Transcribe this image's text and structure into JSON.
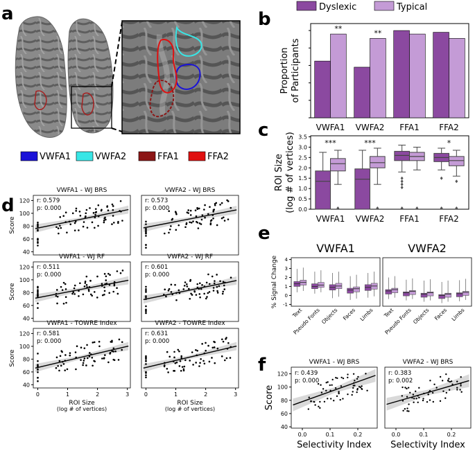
{
  "panel_letters": [
    "a",
    "b",
    "c",
    "d",
    "e",
    "f"
  ],
  "colors": {
    "dyslexic": "#8b49a0",
    "typical": "#c49bd6",
    "vwfa1": "#1a12d8",
    "vwfa2": "#38e6e6",
    "ffa1": "#8c1616",
    "ffa2": "#e01010"
  },
  "roi_legend": [
    {
      "label": "VWFA1",
      "color": "#1a12d8"
    },
    {
      "label": "VWFA2",
      "color": "#38e6e6"
    },
    {
      "label": "FFA1",
      "color": "#8c1616"
    },
    {
      "label": "FFA2",
      "color": "#e01010"
    }
  ],
  "group_legend": [
    {
      "label": "Dyslexic",
      "color": "#8b49a0"
    },
    {
      "label": "Typical",
      "color": "#c49bd6"
    }
  ],
  "chart_data": [
    {
      "id": "b",
      "type": "bar",
      "categories": [
        "VWFA1",
        "VWFA2",
        "FFA1",
        "FFA2"
      ],
      "series": [
        {
          "name": "Dyslexic",
          "values": [
            0.65,
            0.58,
            1.0,
            0.98
          ]
        },
        {
          "name": "Typical",
          "values": [
            0.96,
            0.91,
            0.96,
            0.91
          ]
        }
      ],
      "ylabel_lines": [
        "Proportion",
        "of Participants"
      ],
      "ylim": [
        0,
        1.08
      ],
      "significance": [
        "**",
        "**",
        "",
        ""
      ]
    },
    {
      "id": "c",
      "type": "box",
      "categories": [
        "VWFA1",
        "VWFA2",
        "FFA1",
        "FFA2"
      ],
      "yticks": [
        "0.0",
        "0.5",
        "1.0",
        "1.5",
        "2.0",
        "2.5",
        "3.0",
        "3.5"
      ],
      "ylim": [
        0,
        3.55
      ],
      "ylabel_lines": [
        "ROI Size",
        "(log # of vertices)"
      ],
      "significance": [
        "***",
        "***",
        "",
        "*"
      ],
      "groups": [
        {
          "cat": 0,
          "series": "Dyslexic",
          "q1": 0,
          "med": 1.35,
          "q3": 1.85,
          "wlo": 0,
          "whi": 2.75,
          "outliers": []
        },
        {
          "cat": 0,
          "series": "Typical",
          "q1": 1.85,
          "med": 2.2,
          "q3": 2.45,
          "wlo": 1.2,
          "whi": 2.85,
          "outliers": [
            0.05
          ]
        },
        {
          "cat": 1,
          "series": "Dyslexic",
          "q1": 0,
          "med": 1.45,
          "q3": 1.95,
          "wlo": 0,
          "whi": 2.85,
          "outliers": []
        },
        {
          "cat": 1,
          "series": "Typical",
          "q1": 2.0,
          "med": 2.25,
          "q3": 2.55,
          "wlo": 1.2,
          "whi": 2.95,
          "outliers": [
            0.05
          ]
        },
        {
          "cat": 2,
          "series": "Dyslexic",
          "q1": 2.35,
          "med": 2.6,
          "q3": 2.8,
          "wlo": 1.8,
          "whi": 3.1,
          "outliers": [
            1.5,
            1.35,
            1.2,
            1.05,
            0.05
          ]
        },
        {
          "cat": 2,
          "series": "Typical",
          "q1": 2.35,
          "med": 2.55,
          "q3": 2.75,
          "wlo": 1.9,
          "whi": 3.0,
          "outliers": [
            0.05
          ]
        },
        {
          "cat": 3,
          "series": "Dyslexic",
          "q1": 2.3,
          "med": 2.5,
          "q3": 2.7,
          "wlo": 1.9,
          "whi": 2.95,
          "outliers": [
            1.5,
            0.05
          ]
        },
        {
          "cat": 3,
          "series": "Typical",
          "q1": 2.1,
          "med": 2.35,
          "q3": 2.55,
          "wlo": 1.6,
          "whi": 2.85,
          "outliers": [
            1.35,
            0.05
          ]
        }
      ]
    },
    {
      "id": "d",
      "type": "scatter",
      "xlabel_lines": [
        "ROI Size",
        "(log # of vertices)"
      ],
      "ylabel": "Score",
      "xlim": [
        -0.15,
        3.1
      ],
      "ylim": [
        35,
        128
      ],
      "xticks": [
        "0",
        "1",
        "2",
        "3"
      ],
      "yticks": [
        "40",
        "60",
        "80",
        "100",
        "120"
      ],
      "subplots": [
        {
          "title": "VWFA1 - WJ BRS",
          "r": "r: 0.579",
          "p": "p: 0.000",
          "slope": 9.5,
          "intercept": 77,
          "seed": 11
        },
        {
          "title": "VWFA2 - WJ BRS",
          "r": "r: 0.573",
          "p": "p: 0.000",
          "slope": 9.0,
          "intercept": 78,
          "seed": 23
        },
        {
          "title": "VWFA1 - WJ RF",
          "r": "r: 0.511",
          "p": "p: 0.000",
          "slope": 9.0,
          "intercept": 72,
          "seed": 37
        },
        {
          "title": "VWFA2 - WJ RF",
          "r": "r: 0.601",
          "p": "p: 0.000",
          "slope": 9.5,
          "intercept": 70,
          "seed": 41
        },
        {
          "title": "VWFA1 - TOWRE Index",
          "r": "r: 0.581",
          "p": "p: 0.000",
          "slope": 11.0,
          "intercept": 67,
          "seed": 53
        },
        {
          "title": "VWFA2 - TOWRE Index",
          "r": "r: 0.631",
          "p": "p: 0.000",
          "slope": 11.0,
          "intercept": 67,
          "seed": 67
        }
      ]
    },
    {
      "id": "e",
      "type": "box",
      "ylabel": "% Signal Change",
      "yticks": [
        "-1",
        "0",
        "1",
        "2",
        "3",
        "4"
      ],
      "ylim": [
        -1.2,
        4.2
      ],
      "categories": [
        "Text",
        "Pseudo Fonts",
        "Objects",
        "Faces",
        "Limbs"
      ],
      "panels": [
        {
          "title": "VWFA1",
          "groups": [
            [
              1.3,
              1.55,
              0.95,
              1.3,
              1.75
            ],
            [
              1.0,
              1.3,
              0.8,
              1.05,
              1.45
            ],
            [
              0.9,
              1.2,
              0.3,
              0.9,
              1.3
            ],
            [
              0.6,
              0.8,
              0.1,
              0.55,
              0.95
            ],
            [
              0.9,
              1.2,
              0.35,
              0.85,
              1.3
            ]
          ]
        },
        {
          "title": "VWFA2",
          "groups": [
            [
              0.5,
              0.65,
              0.2,
              0.45,
              0.8
            ],
            [
              0.3,
              0.4,
              0.05,
              0.25,
              0.55
            ],
            [
              0.15,
              0.25,
              -0.1,
              0.1,
              0.45
            ],
            [
              0.0,
              0.1,
              -0.25,
              -0.05,
              0.3
            ],
            [
              0.2,
              0.3,
              -0.05,
              0.15,
              0.5
            ]
          ]
        }
      ]
    },
    {
      "id": "f",
      "type": "scatter",
      "xlabel": "Selectivity Index",
      "ylabel": "Score",
      "xlim": [
        -0.04,
        0.27
      ],
      "ylim": [
        38,
        130
      ],
      "xticks": [
        "0.0",
        "0.1",
        "0.2"
      ],
      "yticks": [
        "40",
        "60",
        "80",
        "100",
        "120"
      ],
      "subplots": [
        {
          "title": "VWFA1 - WJ BRS",
          "r": "r: 0.439",
          "p": "p: 0.000",
          "slope": 150,
          "intercept": 78,
          "seed": 79
        },
        {
          "title": "VWFA2 - WJ BRS",
          "r": "r: 0.383",
          "p": "p: 0.002",
          "slope": 120,
          "intercept": 78,
          "seed": 83
        }
      ]
    }
  ]
}
